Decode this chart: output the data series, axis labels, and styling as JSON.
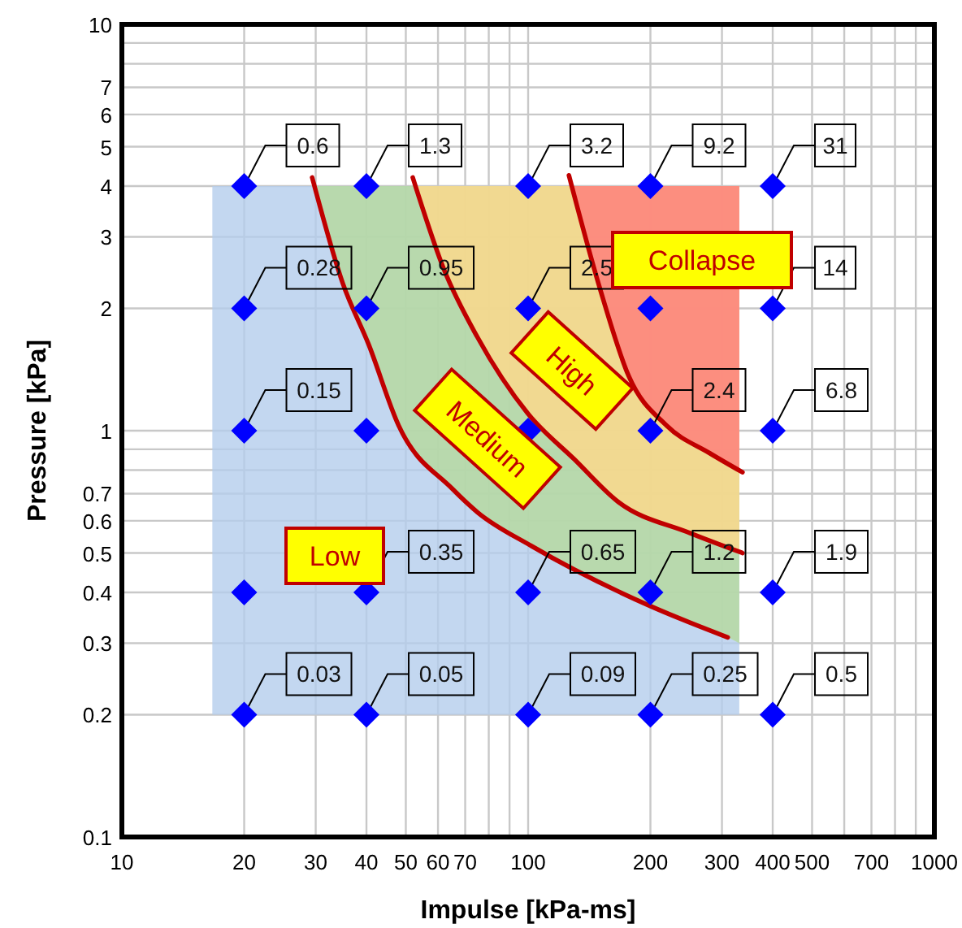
{
  "chart_data": {
    "type": "scatter",
    "xlabel": "Impulse [kPa-ms]",
    "ylabel": "Pressure [kPa]",
    "log": "xy",
    "grid": true,
    "marker": "diamond",
    "xlim": [
      10,
      1000
    ],
    "xticks": [
      10,
      20,
      30,
      40,
      50,
      60,
      70,
      {
        "value": 80,
        "label": null
      },
      {
        "value": 90,
        "label": null
      },
      100,
      200,
      300,
      400,
      500,
      {
        "value": 600,
        "label": null
      },
      700,
      {
        "value": 800,
        "label": null
      },
      {
        "value": 900,
        "label": null
      },
      1000
    ],
    "ylim": [
      0.1,
      10
    ],
    "yticks": [
      0.1,
      0.2,
      0.3,
      0.4,
      0.5,
      0.6,
      0.7,
      {
        "value": 0.8,
        "label": null
      },
      {
        "value": 0.9,
        "label": null
      },
      1,
      2,
      3,
      4,
      5,
      6,
      7,
      {
        "value": 8,
        "label": null
      },
      {
        "value": 9,
        "label": null
      },
      10
    ],
    "series": [
      {
        "type": "line",
        "color": "#b4cdec",
        "marker": "none",
        "x": [
          16.7,
          331
        ],
        "values": [
          null,
          null
        ],
        "lower": [
          0.2,
          0.2
        ],
        "upper": [
          4,
          4
        ]
      },
      {
        "type": "line",
        "color": "#b5d99c",
        "marker": "none",
        "x": [
          29.7,
          35,
          40.5,
          48,
          65,
          75,
          102,
          200,
          310,
          331
        ],
        "values": [
          null,
          null,
          null,
          null,
          null,
          null,
          null,
          null,
          null,
          null
        ],
        "lower": [
          4,
          2.3,
          1.63,
          1.03,
          0.72,
          0.63,
          0.52,
          0.37,
          0.31,
          0.3
        ],
        "upper": [
          4,
          4,
          4,
          4,
          4,
          4,
          4,
          4,
          4,
          4
        ]
      },
      {
        "type": "line",
        "color": "#ffd88a",
        "marker": "none",
        "x": [
          53,
          62,
          75,
          100,
          130,
          166,
          250,
          331
        ],
        "values": [
          null,
          null,
          null,
          null,
          null,
          null,
          null,
          null
        ],
        "lower": [
          4,
          2.5,
          1.7,
          1.1,
          0.85,
          0.67,
          0.56,
          0.5
        ],
        "upper": [
          4,
          4,
          4,
          4,
          4,
          4,
          4,
          4
        ]
      },
      {
        "type": "line",
        "color": "#ff7a7a",
        "marker": "none",
        "x": [
          127,
          150,
          177,
          219,
          280,
          331
        ],
        "values": [
          null,
          null,
          null,
          null,
          null,
          null
        ],
        "lower": [
          4,
          2.25,
          1.36,
          1.03,
          0.88,
          0.8
        ],
        "upper": [
          4,
          4,
          4,
          4,
          4,
          4
        ]
      },
      {
        "type": "line",
        "color": "#c00000",
        "marker": "none",
        "x": [
          29.4,
          35,
          40.5,
          48,
          65,
          75,
          102,
          200,
          310
        ],
        "values": [
          4.2,
          2.3,
          1.63,
          1.03,
          0.72,
          0.63,
          0.52,
          0.37,
          0.31
        ]
      },
      {
        "type": "line",
        "color": "#c00000",
        "marker": "none",
        "x": [
          52,
          62,
          75,
          100,
          130,
          166,
          250,
          337
        ],
        "values": [
          4.2,
          2.5,
          1.7,
          1.1,
          0.85,
          0.67,
          0.56,
          0.5
        ]
      },
      {
        "type": "line",
        "color": "#c00000",
        "marker": "none",
        "x": [
          126,
          150,
          177,
          219,
          280,
          337
        ],
        "values": [
          4.25,
          2.25,
          1.36,
          1.03,
          0.88,
          0.79
        ]
      },
      {
        "color": "#0000ff",
        "x": [
          20,
          40,
          100,
          200,
          400,
          20,
          40,
          100,
          200,
          400,
          20,
          40,
          100,
          200,
          400,
          20,
          40,
          100,
          200,
          400,
          20,
          40,
          100,
          200,
          400
        ],
        "values": [
          4,
          4,
          4,
          4,
          4,
          2,
          2,
          2,
          2,
          2,
          1,
          1,
          1,
          1,
          1,
          0.4,
          0.4,
          0.4,
          0.4,
          0.4,
          0.2,
          0.2,
          0.2,
          0.2,
          0.2
        ]
      }
    ],
    "annotations": [
      "Low",
      "Medium",
      "High",
      "Collapse",
      {
        "text": "0.6",
        "x": 20,
        "y": 4
      },
      {
        "text": "1.3",
        "x": 40,
        "y": 4
      },
      {
        "text": "3.2",
        "x": 100,
        "y": 4
      },
      {
        "text": "9.2",
        "x": 200,
        "y": 4
      },
      {
        "text": "31",
        "x": 400,
        "y": 4
      },
      {
        "text": "0.28",
        "x": 20,
        "y": 2
      },
      {
        "text": "0.95",
        "x": 40,
        "y": 2
      },
      {
        "text": "2.5",
        "x": 100,
        "y": 2
      },
      {
        "text": "14",
        "x": 400,
        "y": 2
      },
      {
        "text": "0.15",
        "x": 20,
        "y": 1
      },
      {
        "text": "2.4",
        "x": 200,
        "y": 1
      },
      {
        "text": "6.8",
        "x": 400,
        "y": 1
      },
      {
        "text": "0.35",
        "x": 40,
        "y": 0.4
      },
      {
        "text": "0.65",
        "x": 100,
        "y": 0.4
      },
      {
        "text": "1.2",
        "x": 200,
        "y": 0.4
      },
      {
        "text": "1.9",
        "x": 400,
        "y": 0.4
      },
      {
        "text": "0.03",
        "x": 20,
        "y": 0.2
      },
      {
        "text": "0.05",
        "x": 40,
        "y": 0.2
      },
      {
        "text": "0.09",
        "x": 100,
        "y": 0.2
      },
      {
        "text": "0.25",
        "x": 200,
        "y": 0.2
      },
      {
        "text": "0.5",
        "x": 400,
        "y": 0.2
      }
    ]
  }
}
